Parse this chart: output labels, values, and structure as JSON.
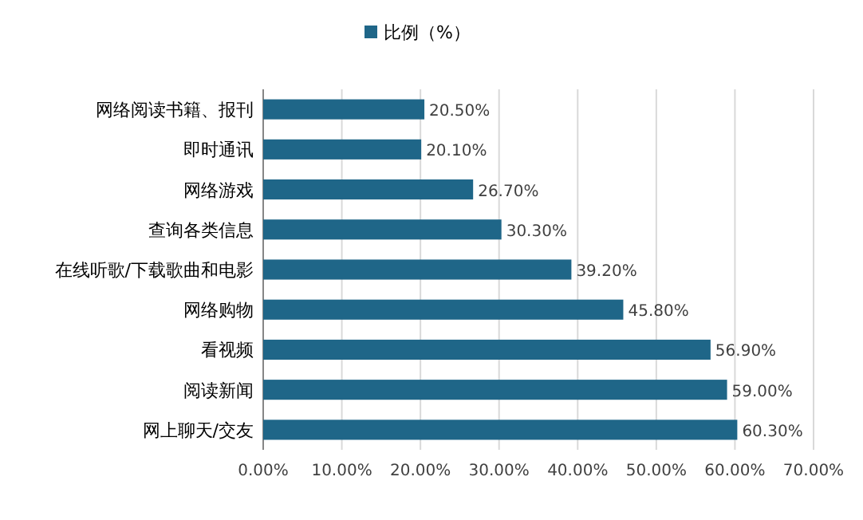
{
  "chart_data": {
    "type": "bar",
    "orientation": "horizontal",
    "categories": [
      "网络阅读书籍、报刊",
      "即时通讯",
      "网络游戏",
      "查询各类信息",
      "在线听歌/下载歌曲和电影",
      "网络购物",
      "看视频",
      "阅读新闻",
      "网上聊天/交友"
    ],
    "series": [
      {
        "name": "比例（%）",
        "color": "#1f6688",
        "values": [
          20.5,
          20.1,
          26.7,
          30.3,
          39.2,
          45.8,
          56.9,
          59.0,
          60.3
        ],
        "value_labels": [
          "20.50%",
          "20.10%",
          "26.70%",
          "30.30%",
          "39.20%",
          "45.80%",
          "56.90%",
          "59.00%",
          "60.30%"
        ]
      }
    ],
    "xlim": [
      0,
      70
    ],
    "xticks": [
      {
        "value": 0,
        "label": "0.00%"
      },
      {
        "value": 10,
        "label": "10.00%"
      },
      {
        "value": 20,
        "label": "20.00%"
      },
      {
        "value": 30,
        "label": "30.00%"
      },
      {
        "value": 40,
        "label": "40.00%"
      },
      {
        "value": 50,
        "label": "50.00%"
      },
      {
        "value": 60,
        "label": "60.00%"
      },
      {
        "value": 70,
        "label": "70.00%"
      }
    ],
    "grid": "x",
    "legend": "top"
  }
}
